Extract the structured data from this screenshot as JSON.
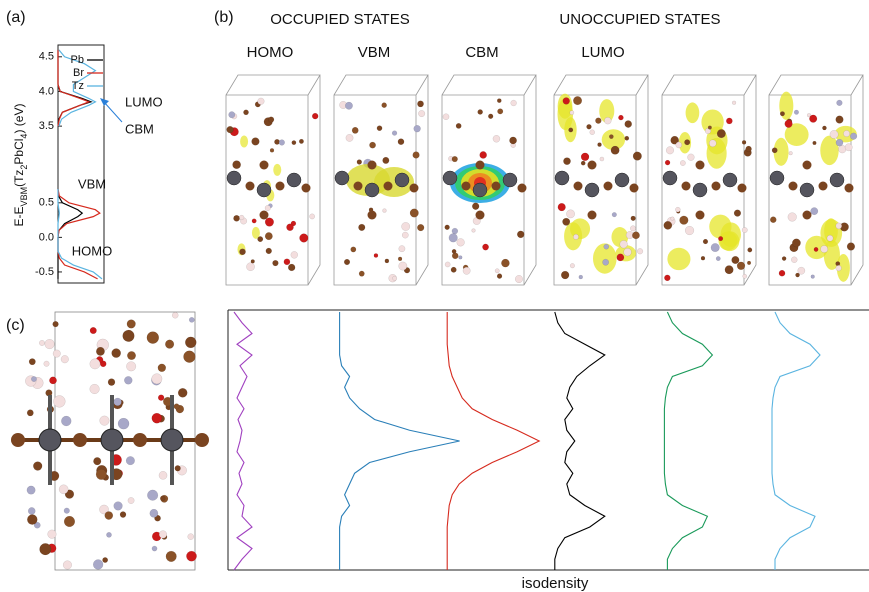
{
  "panel_labels": [
    "(a)",
    "(b)",
    "(c)"
  ],
  "panel_b": {
    "group_headers": [
      "OCCUPIED STATES",
      "UNOCCUPIED STATES"
    ],
    "state_labels": [
      "HOMO",
      "VBM",
      "CBM",
      "LUMO"
    ]
  },
  "chart_data": [
    {
      "type": "line",
      "y_label_parts": [
        {
          "text": "E-E"
        },
        {
          "text": "VBM",
          "sub": true
        },
        {
          "text": "(Tz"
        },
        {
          "text": "2",
          "sub": true
        },
        {
          "text": "PbCl"
        },
        {
          "text": "4",
          "sub": true
        },
        {
          "text": ") (eV)"
        }
      ],
      "series": [
        {
          "name": "Pb",
          "color": "#000000"
        },
        {
          "name": "Br",
          "color": "#d62a1e"
        },
        {
          "name": "Tz",
          "color": "#5ab4e0"
        }
      ],
      "annotations": [
        "LUMO",
        "CBM",
        "VBM",
        "HOMO"
      ],
      "segments": [
        {
          "ylim": [
            3.3,
            4.67
          ],
          "yticks": [
            3.5,
            {
              "value": 4,
              "label": "4.0"
            },
            4.5
          ],
          "energy": [
            3.5,
            3.6,
            3.7,
            3.8,
            3.85,
            3.9,
            4.0,
            4.1,
            4.2,
            4.3,
            4.4,
            4.5,
            4.6
          ],
          "values": [
            [
              0,
              0.02,
              0.1,
              0.5,
              0.75,
              0.55,
              0.05,
              0,
              0,
              0,
              0,
              0,
              0
            ],
            [
              0,
              0.03,
              0.1,
              0.5,
              0.7,
              0.5,
              0.05,
              0,
              0,
              0,
              0,
              0,
              0
            ],
            [
              0.02,
              0.08,
              0.3,
              0.7,
              0.85,
              0.7,
              0.35,
              0.35,
              0.6,
              0.85,
              0.6,
              0.15,
              0.02
            ]
          ]
        },
        {
          "ylim": [
            -0.66,
            0.83
          ],
          "yticks": [
            -0.5,
            {
              "value": 0,
              "label": "0.0"
            },
            0.5
          ],
          "energy": [
            -0.6,
            -0.5,
            -0.4,
            -0.3,
            -0.2,
            -0.1,
            0,
            0.1,
            0.2,
            0.3,
            0.35,
            0.4,
            0.5,
            0.6,
            0.7
          ],
          "values": [
            [
              0,
              0,
              0,
              0,
              0,
              0,
              0,
              0.02,
              0.15,
              0.45,
              0.55,
              0.45,
              0.1,
              0.01,
              0
            ],
            [
              0.9,
              0.6,
              0.15,
              0.03,
              0,
              0,
              0,
              0.02,
              0.2,
              0.8,
              0.95,
              0.85,
              0.25,
              0.03,
              0
            ],
            [
              1,
              0.8,
              0.35,
              0.08,
              0,
              0,
              0,
              0,
              0,
              0.02,
              0.03,
              0.02,
              0,
              0,
              0
            ]
          ]
        }
      ]
    },
    {
      "type": "line",
      "xlabel": "isodensity",
      "series": [
        {
          "color": "#a040c0",
          "values": [
            0.02,
            0.1,
            0.2,
            0.05,
            0.2,
            0.08,
            0.15,
            0.1,
            0.05,
            0.12,
            0.06,
            0.1,
            0.08,
            0.05,
            0.12,
            0.07,
            0.1,
            0.05,
            0.12,
            0.1,
            0.2,
            0.05,
            0.2,
            0.1,
            0.02
          ]
        },
        {
          "color": "#2a7fb8",
          "values": [
            0,
            0,
            0,
            0,
            0,
            0.02,
            0.1,
            0.05,
            0.1,
            0.2,
            0.35,
            0.7,
            1.2,
            0.7,
            0.3,
            0.15,
            0.1,
            0.05,
            0.1,
            0.02,
            0,
            0,
            0,
            0,
            0
          ]
        },
        {
          "color": "#d62a1e",
          "values": [
            0,
            0,
            0,
            0,
            0.01,
            0.02,
            0.05,
            0.1,
            0.15,
            0.25,
            0.45,
            0.7,
            0.92,
            0.7,
            0.45,
            0.25,
            0.12,
            0.05,
            0.02,
            0.01,
            0,
            0,
            0,
            0,
            0
          ]
        },
        {
          "color": "#000000",
          "values": [
            0,
            0.03,
            0.1,
            0.3,
            0.5,
            0.35,
            0.22,
            0.15,
            0.12,
            0.18,
            0.1,
            0.12,
            0.2,
            0.12,
            0.1,
            0.18,
            0.12,
            0.15,
            0.3,
            0.5,
            0.35,
            0.1,
            0.03,
            0,
            0
          ]
        },
        {
          "color": "#1a9a5a",
          "values": [
            0.05,
            0.1,
            0.2,
            0.4,
            0.5,
            0.4,
            0.1,
            0.05,
            0.03,
            0.02,
            0.02,
            0.02,
            0.02,
            0.02,
            0.02,
            0.02,
            0.03,
            0.05,
            0.2,
            0.45,
            0.4,
            0.2,
            0.1,
            0.05,
            0.05
          ]
        },
        {
          "color": "#5ab4e0",
          "values": [
            0.05,
            0.1,
            0.2,
            0.4,
            0.5,
            0.4,
            0.1,
            0.05,
            0.03,
            0.02,
            0.02,
            0.02,
            0.02,
            0.02,
            0.02,
            0.02,
            0.03,
            0.05,
            0.2,
            0.45,
            0.4,
            0.2,
            0.1,
            0.05,
            0.05
          ]
        }
      ]
    }
  ]
}
